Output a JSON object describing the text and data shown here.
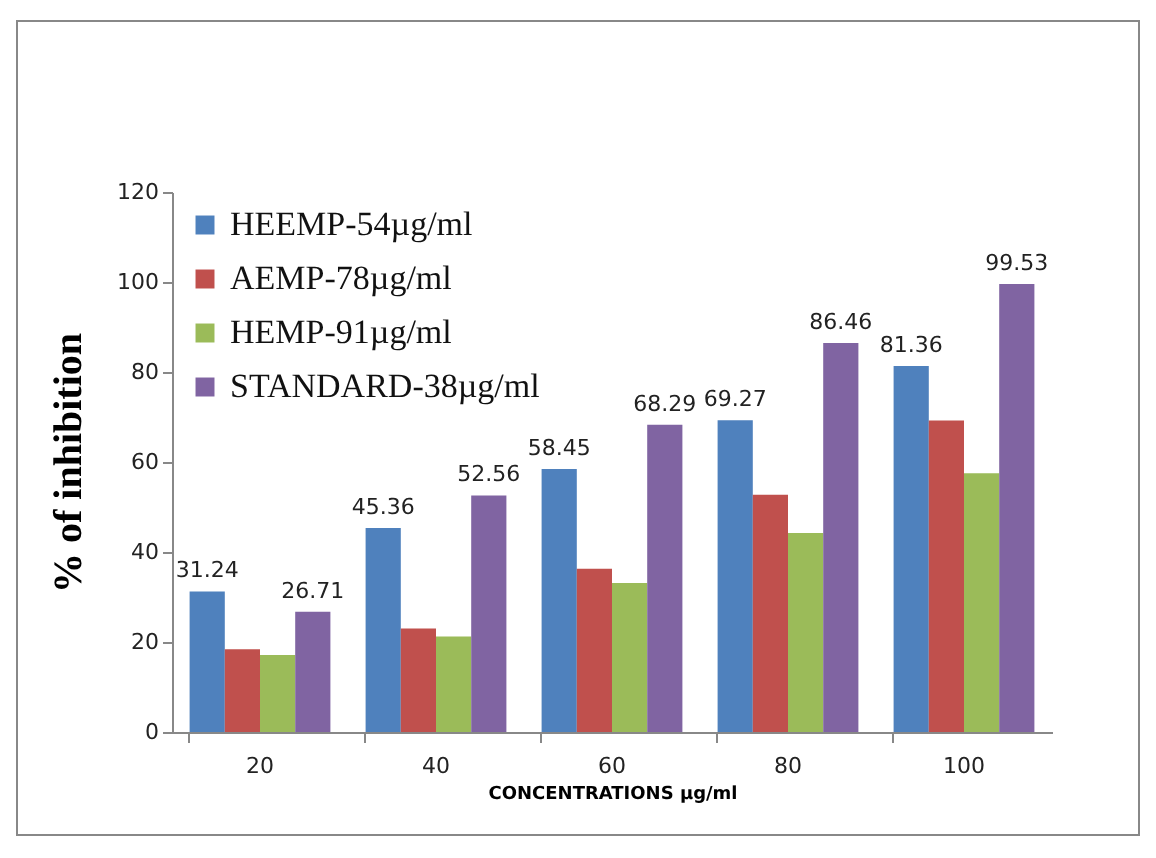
{
  "chart_data": {
    "type": "bar",
    "xlabel": "CONCENTRATIONS  µg/ml",
    "ylabel": "% of inhibition",
    "categories": [
      "20",
      "40",
      "60",
      "80",
      "100"
    ],
    "ylim": [
      0,
      120
    ],
    "yticks": [
      0,
      20,
      40,
      60,
      80,
      100,
      120
    ],
    "grid": false,
    "legend": "top left",
    "series": [
      {
        "name": "HEEMP-54µg/ml",
        "color": "#4f81bd",
        "values": [
          31.24,
          45.36,
          58.45,
          69.27,
          81.36
        ],
        "value_labels": [
          "31.24",
          "45.36",
          "58.45",
          "69.27",
          "81.36"
        ]
      },
      {
        "name": "AEMP-78µg/ml",
        "color": "#c0504d",
        "values": [
          18.4,
          23.0,
          36.3,
          52.7,
          69.2
        ],
        "value_labels": [
          null,
          null,
          null,
          null,
          null
        ]
      },
      {
        "name": "HEMP-91µg/ml",
        "color": "#9bbb59",
        "values": [
          17.1,
          21.2,
          33.1,
          44.2,
          57.5
        ],
        "value_labels": [
          null,
          null,
          null,
          null,
          null
        ]
      },
      {
        "name": "STANDARD-38µg/ml",
        "color": "#8064a2",
        "values": [
          26.71,
          52.56,
          68.29,
          86.46,
          99.53
        ],
        "value_labels": [
          "26.71",
          "52.56",
          "68.29",
          "86.46",
          "99.53"
        ]
      }
    ]
  }
}
